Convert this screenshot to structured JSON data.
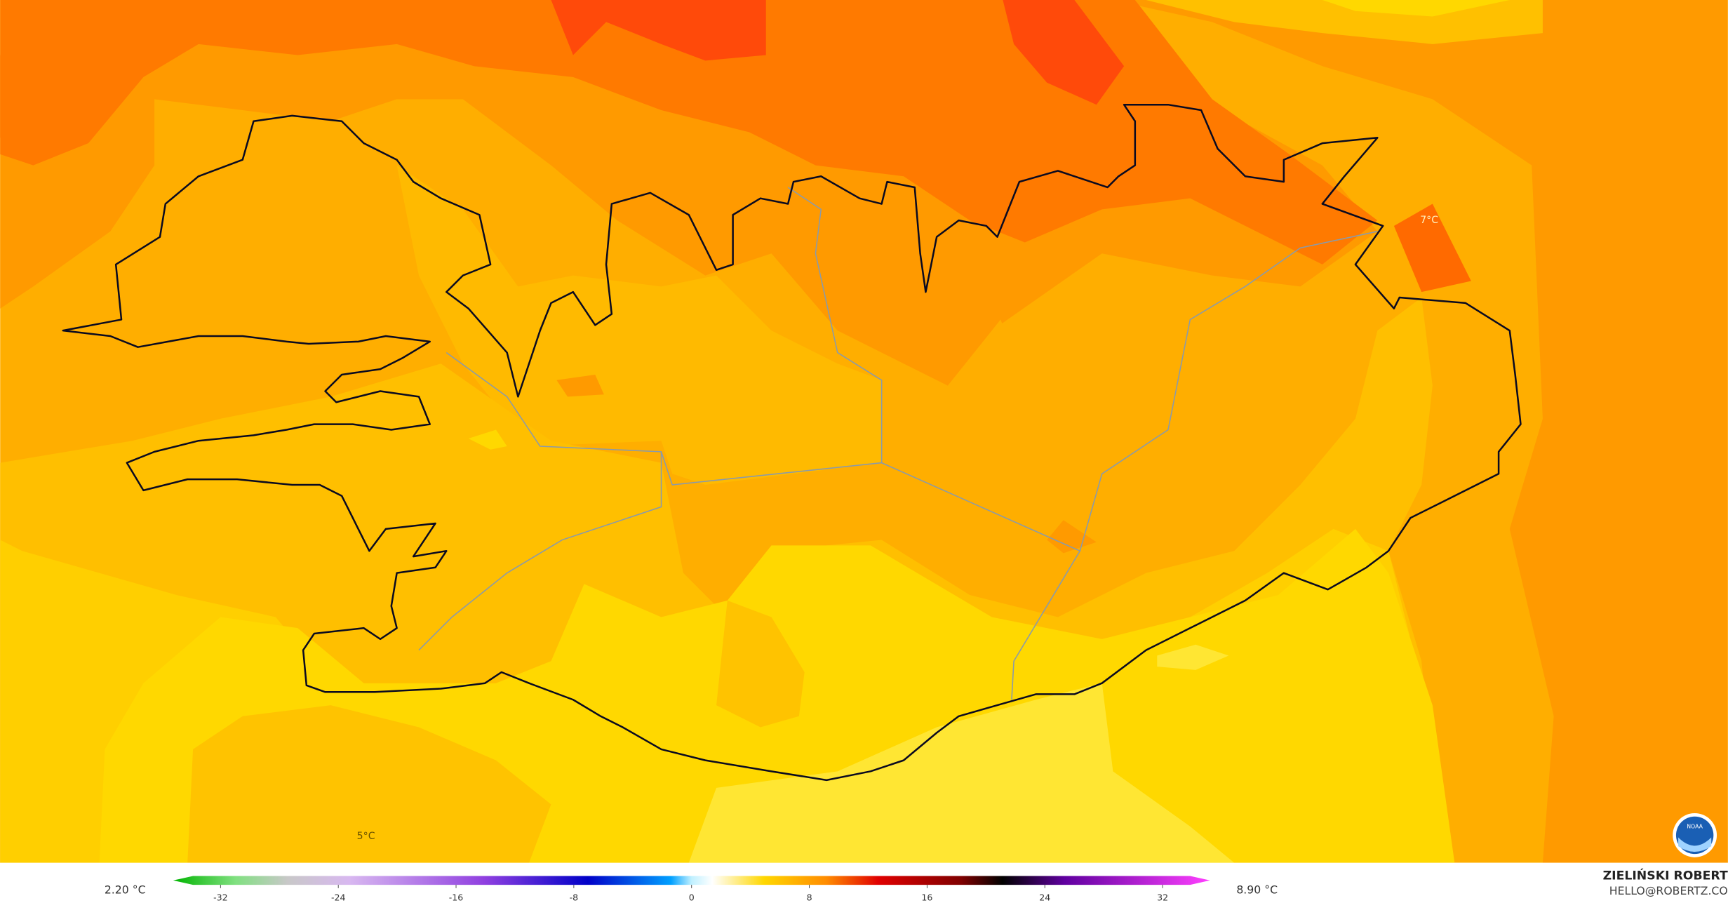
{
  "map": {
    "labels": [
      "7°C",
      "5°C"
    ]
  },
  "colorbar": {
    "min_label": "2.20 °C",
    "max_label": "8.90 °C",
    "ticks": [
      -32,
      -24,
      -16,
      -8,
      0,
      8,
      16,
      24,
      32
    ]
  },
  "credit": {
    "name": "ZIELIŃSKI ROBERT",
    "email": "HELLO@ROBERTZ.CO"
  },
  "logo": {
    "text": "NOAA"
  }
}
